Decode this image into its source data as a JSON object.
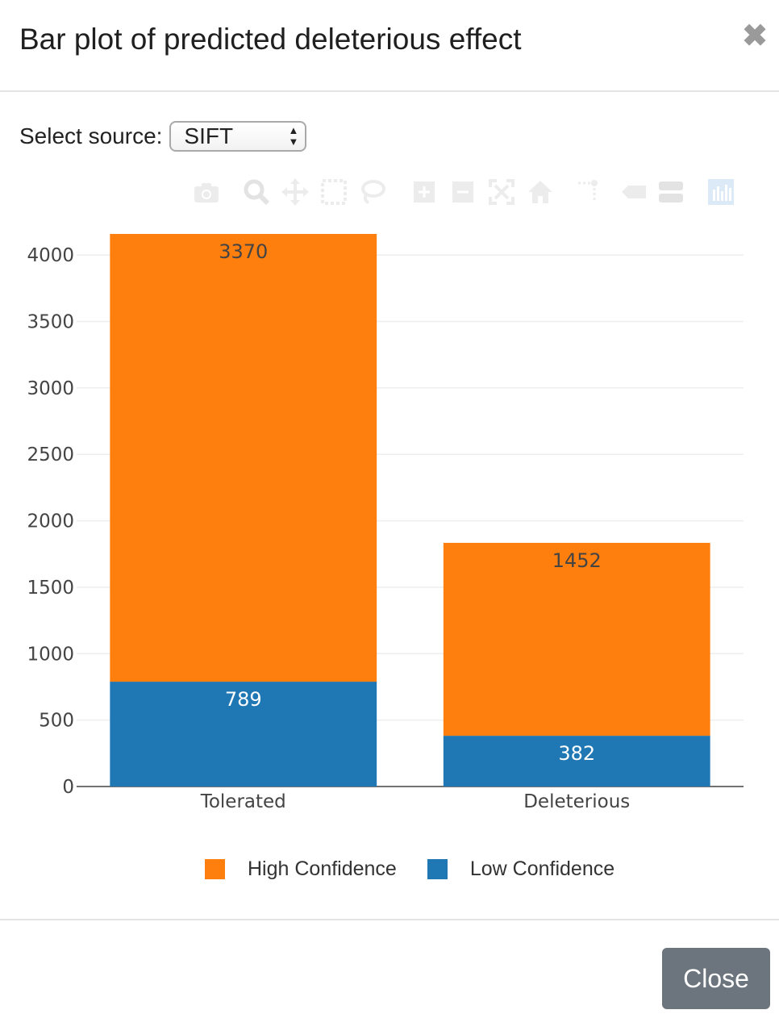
{
  "modal": {
    "title": "Bar plot of predicted deleterious effect",
    "close_x": "✖"
  },
  "source": {
    "label": "Select source:",
    "selected": "SIFT"
  },
  "modebar": {
    "icons": [
      "camera-icon",
      "zoom-icon",
      "pan-icon",
      "box-select-icon",
      "lasso-select-icon",
      "zoom-in-icon",
      "zoom-out-icon",
      "autoscale-icon",
      "reset-axes-icon",
      "spike-lines-icon",
      "hover-closest-icon",
      "hover-compare-icon",
      "plotly-logo-icon"
    ]
  },
  "footer": {
    "close_label": "Close"
  },
  "colors": {
    "high": "#ff7f0e",
    "low": "#1f77b4"
  },
  "chart_data": {
    "type": "bar",
    "barmode": "stack",
    "categories": [
      "Tolerated",
      "Deleterious"
    ],
    "series": [
      {
        "name": "Low Confidence",
        "values": [
          789,
          382
        ],
        "color": "#1f77b4"
      },
      {
        "name": "High Confidence",
        "values": [
          3370,
          1452
        ],
        "color": "#ff7f0e"
      }
    ],
    "ylim": [
      0,
      4159
    ],
    "yticks": [
      0,
      500,
      1000,
      1500,
      2000,
      2500,
      3000,
      3500,
      4000
    ],
    "grid": true,
    "legend_position": "bottom",
    "legend_order": [
      "High Confidence",
      "Low Confidence"
    ]
  }
}
